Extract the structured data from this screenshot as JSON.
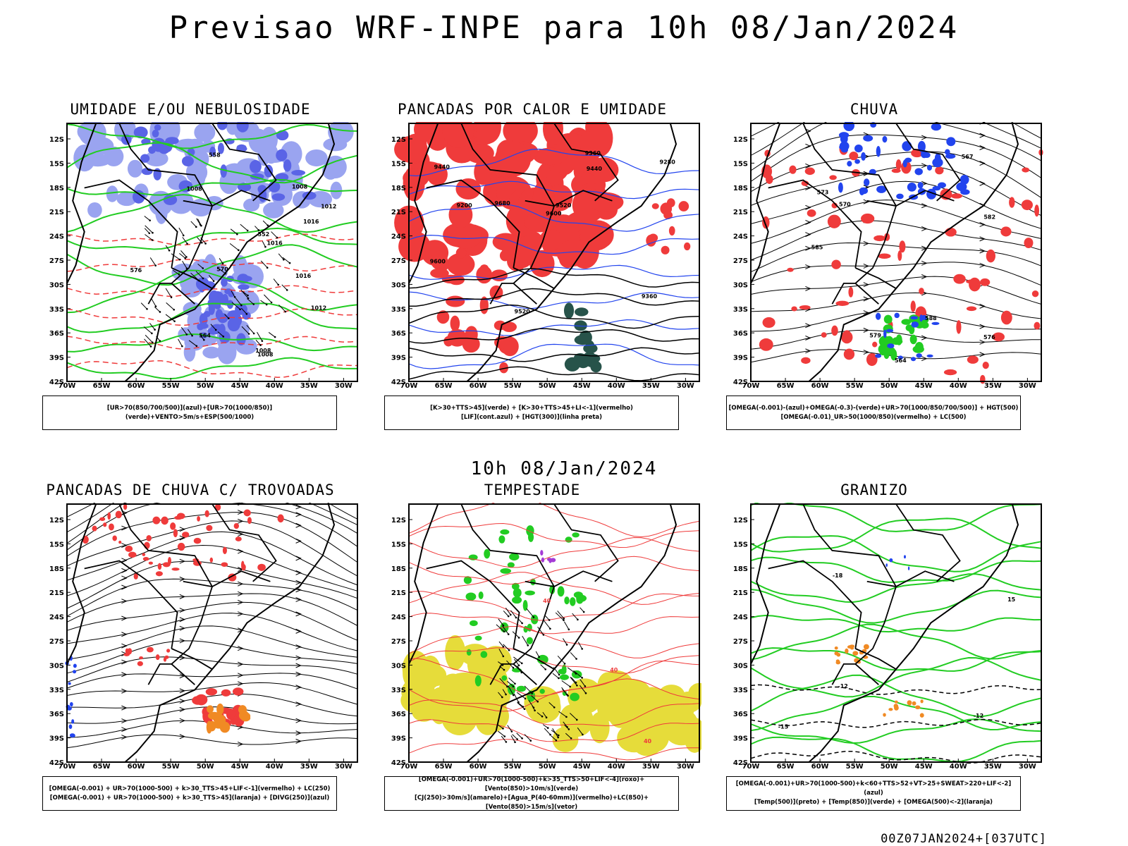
{
  "header": {
    "title": "Previsao WRF-INPE  para 10h 08/Jan/2024",
    "mid_title": "10h 08/Jan/2024",
    "footer": "00Z07JAN2024+[037UTC]"
  },
  "axes": {
    "lat_labels": [
      "12S",
      "15S",
      "18S",
      "21S",
      "24S",
      "27S",
      "30S",
      "33S",
      "36S",
      "39S",
      "42S"
    ],
    "lon_labels": [
      "70W",
      "65W",
      "60W",
      "55W",
      "50W",
      "45W",
      "40W",
      "35W",
      "30W"
    ]
  },
  "panels": [
    {
      "id": "umidade",
      "title": "UMIDADE E/OU NEBULOSIDADE",
      "legend": [
        "[UR>70(850/700/500)](azul)+[UR>70(1000/850)](verde)+VENTO>5m/s+ESP(500/1000)"
      ],
      "labels": [
        "1012",
        "1016",
        "1008",
        "1016",
        "1008",
        "1008",
        "1012",
        "576",
        "570",
        "564",
        "558",
        "552",
        "1016",
        "1008"
      ]
    },
    {
      "id": "pancadas_calor",
      "title": "PANCADAS POR CALOR E UMIDADE",
      "legend": [
        "[K>30+TTS>45](verde) + [K>30+TTS>45+LI<-1](vermelho)",
        "[LIF](cont.azul) + [HGT(300)](linha preta)"
      ],
      "labels": [
        "9680",
        "9600",
        "9520",
        "9440",
        "9360",
        "9280",
        "9200",
        "9600",
        "9520",
        "9440",
        "9360"
      ]
    },
    {
      "id": "chuva",
      "title": "CHUVA",
      "legend": [
        "[OMEGA(-0.001)-(azul)+OMEGA(-0.3)-(verde)+UR>70(1000/850/700/500)] + HGT(500)",
        "[OMEGA(-0.01)_UR>50(1000/850)(vermelho) + LC(500)"
      ],
      "labels": [
        "588",
        "585",
        "582",
        "579",
        "576",
        "573",
        "570",
        "567",
        "564"
      ]
    },
    {
      "id": "trovoadas",
      "title": "PANCADAS DE CHUVA C/ TROVOADAS",
      "legend": [
        "[OMEGA(-0.001) + UR>70(1000-500) + k>30_TTS>45+LIF<-1](vermelho) + LC(250)",
        "[OMEGA(-0.001) + UR>70(1000-500) + k>30_TTS>45](laranja) + [DIVG(250)](azul)"
      ],
      "labels": []
    },
    {
      "id": "tempestade",
      "title": "TEMPESTADE",
      "legend": [
        "[OMEGA(-0.001)+UR>70(1000-500)+k>35_TTS>50+LIF<-4](roxo)+[Vento(850)>10m/s](verde)",
        "[CJ(250)>30m/s](amarelo)+[Agua_P(40-60mm)](vermelho)+LC(850)+[Vento(850)>15m/s](vetor)"
      ],
      "labels": [
        "40",
        "40",
        "40"
      ]
    },
    {
      "id": "granizo",
      "title": "GRANIZO",
      "legend": [
        "[OMEGA(-0.001)+UR>70(1000-500)+k<60+TTS>52+VT>25+SWEAT>220+LIF<-2](azul)",
        "[Temp(500)](preto) + [Temp(850)](verde) + [OMEGA(500)<-2](laranja)"
      ],
      "labels": [
        "-12",
        "-15",
        "-18",
        "-12",
        "15"
      ]
    }
  ],
  "colors": {
    "red": "#ef3b3b",
    "blue": "#2244ee",
    "lightblue": "#9aa4f0",
    "green": "#22cc22",
    "darkgreen": "#27534a",
    "yellow": "#e6dc3a",
    "orange": "#f08a24",
    "purple": "#a43bd6",
    "black": "#000000"
  }
}
